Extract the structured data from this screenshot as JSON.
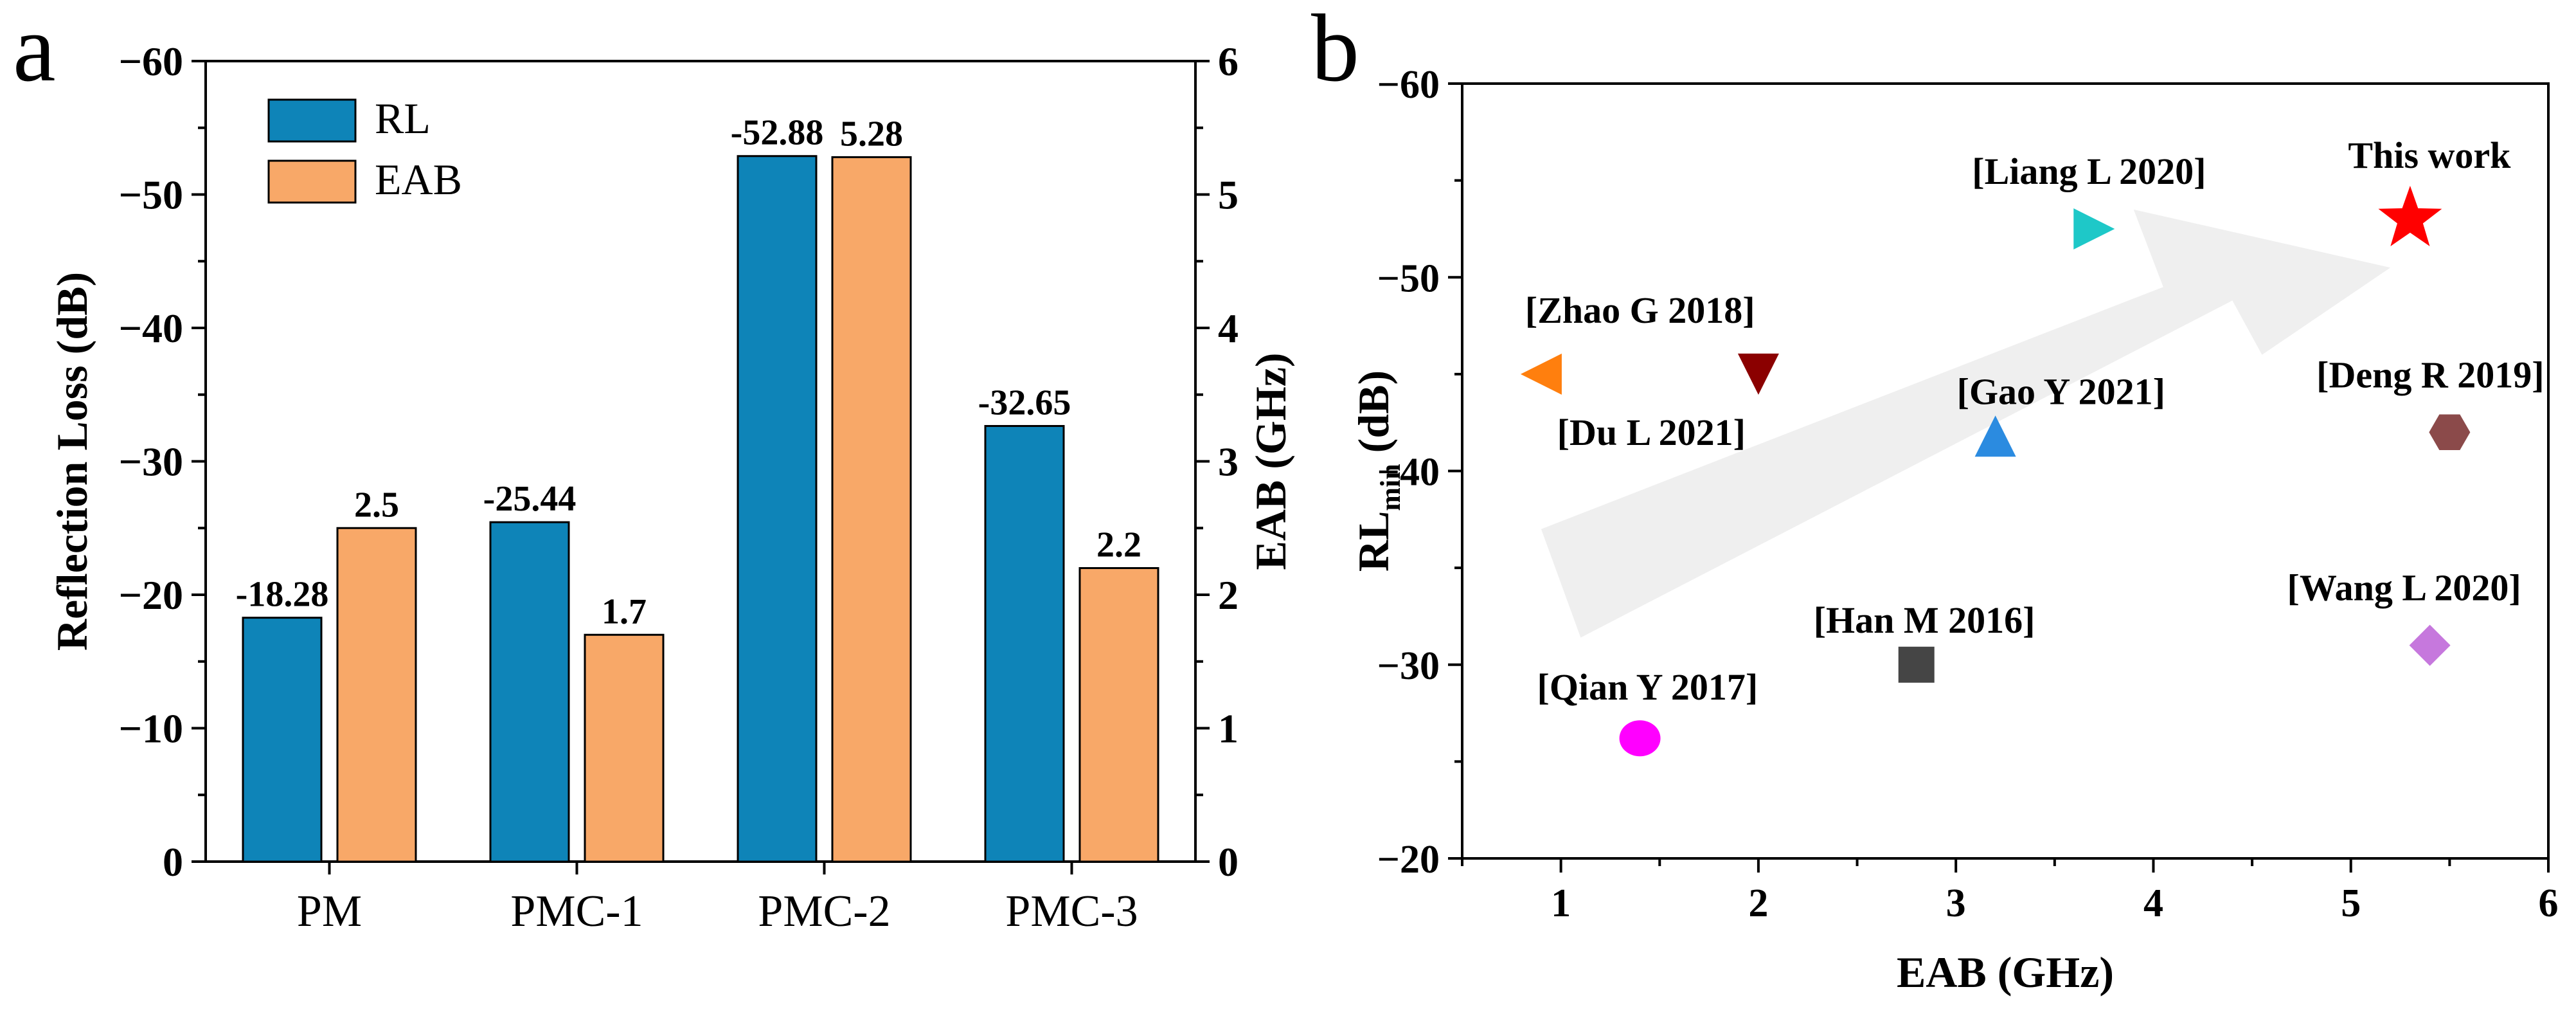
{
  "panels": {
    "a": {
      "label": "a"
    },
    "b": {
      "label": "b"
    }
  },
  "chart_data": [
    {
      "type": "bar",
      "panel": "a",
      "categories": [
        "PM",
        "PMC-1",
        "PMC-2",
        "PMC-3"
      ],
      "series": [
        {
          "name": "RL",
          "axis": "left",
          "color": "#0e84b8",
          "values": [
            -18.28,
            -25.44,
            -52.88,
            -32.65
          ],
          "labels": [
            "-18.28",
            "-25.44",
            "-52.88",
            "-32.65"
          ]
        },
        {
          "name": "EAB",
          "axis": "right",
          "color": "#f8a868",
          "values": [
            2.5,
            1.7,
            5.28,
            2.2
          ],
          "labels": [
            "2.5",
            "1.7",
            "5.28",
            "2.2"
          ]
        }
      ],
      "ylabel": "Reflection Loss (dB)",
      "y2label": "EAB (GHz)",
      "ylim": [
        0,
        -60
      ],
      "y2lim": [
        0,
        6
      ],
      "yticks": [
        "0",
        "−10",
        "−20",
        "−30",
        "−40",
        "−50",
        "−60"
      ],
      "y2ticks": [
        "0",
        "1",
        "2",
        "3",
        "4",
        "5",
        "6"
      ],
      "legend": {
        "placement": "top-left",
        "entries": [
          "RL",
          "EAB"
        ]
      }
    },
    {
      "type": "scatter",
      "panel": "b",
      "xlabel": "EAB (GHz)",
      "ylabel_main": "RL",
      "ylabel_sub": "min",
      "ylabel_unit": " (dB)",
      "xlim": [
        0.5,
        6
      ],
      "ylim": [
        -20,
        -60
      ],
      "xticks": [
        "1",
        "2",
        "3",
        "4",
        "5",
        "6"
      ],
      "yticks": [
        "−20",
        "−30",
        "−40",
        "−50",
        "−60"
      ],
      "arrow_color": "#efefef",
      "points": [
        {
          "label": "[Zhao G 2018]",
          "x": 0.9,
          "y": -45,
          "marker": "triangle-left",
          "color": "#ff7f0e",
          "label_dx": -25,
          "label_dy": -80,
          "label_anchor": "start"
        },
        {
          "label": "[Du L 2021]",
          "x": 2.0,
          "y": -45,
          "marker": "triangle-down",
          "color": "#8b0000",
          "label_dx": -20,
          "label_dy": 110,
          "label_anchor": "end"
        },
        {
          "label": "[Gao Y 2021]",
          "x": 3.2,
          "y": -41.8,
          "marker": "triangle-up",
          "color": "#2b8be0",
          "label_dx": -60,
          "label_dy": -50,
          "label_anchor": "start"
        },
        {
          "label": "[Liang L 2020]",
          "x": 3.7,
          "y": -52.5,
          "marker": "triangle-right",
          "color": "#1ec8c8",
          "label_dx": -190,
          "label_dy": -70,
          "label_anchor": "start"
        },
        {
          "label": "This work",
          "x": 5.3,
          "y": -53,
          "marker": "star",
          "color": "#ff0000",
          "label_dx": 30,
          "label_dy": -80,
          "label_anchor": "middle"
        },
        {
          "label": "[Deng R 2019]",
          "x": 5.5,
          "y": -42,
          "marker": "hexagon",
          "color": "#8b4a4a",
          "label_dx": -30,
          "label_dy": -70,
          "label_anchor": "middle"
        },
        {
          "label": "[Wang L 2020]",
          "x": 5.4,
          "y": -31,
          "marker": "diamond",
          "color": "#c678dd",
          "label_dx": -40,
          "label_dy": -70,
          "label_anchor": "middle"
        },
        {
          "label": "[Han M 2016]",
          "x": 2.8,
          "y": -30,
          "marker": "square",
          "color": "#454545",
          "label_dx": -160,
          "label_dy": -50,
          "label_anchor": "start"
        },
        {
          "label": "[Qian Y 2017]",
          "x": 1.4,
          "y": -26.2,
          "marker": "circle",
          "color": "#ff00ff",
          "label_dx": -160,
          "label_dy": -60,
          "label_anchor": "start"
        }
      ]
    }
  ]
}
